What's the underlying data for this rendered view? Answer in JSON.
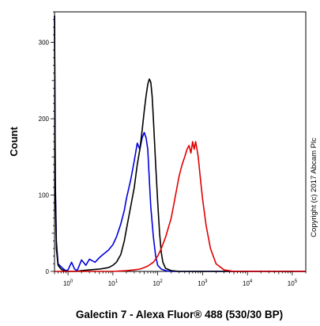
{
  "chart_data": {
    "type": "line",
    "title": "",
    "xlabel": "Galectin 7 - Alexa Fluor® 488 (530/30 BP)",
    "ylabel": "Count",
    "x_scale": "log",
    "xlim": [
      0.5,
      200000
    ],
    "ylim": [
      0,
      340
    ],
    "x_ticks": [
      {
        "value": 1,
        "base": "10",
        "exp": "0"
      },
      {
        "value": 10,
        "base": "10",
        "exp": "1"
      },
      {
        "value": 100,
        "base": "10",
        "exp": "2"
      },
      {
        "value": 1000,
        "base": "10",
        "exp": "3"
      },
      {
        "value": 10000,
        "base": "10",
        "exp": "4"
      },
      {
        "value": 100000,
        "base": "10",
        "exp": "5"
      }
    ],
    "y_ticks": [
      0,
      100,
      200,
      300
    ],
    "grid": false,
    "legend": "none",
    "annotation": "Copyright (c) 2017 Abcam Plc",
    "series": [
      {
        "color": "#0000dd",
        "x": [
          0.5,
          0.52,
          0.55,
          0.6,
          0.7,
          0.8,
          0.9,
          1.0,
          1.2,
          1.4,
          1.6,
          2.0,
          2.5,
          3,
          4,
          5,
          6,
          8,
          10,
          12,
          15,
          18,
          20,
          25,
          30,
          35,
          40,
          45,
          50,
          55,
          60,
          65,
          70,
          80,
          90,
          100,
          120,
          150,
          200,
          300,
          500,
          1000,
          10000,
          200000
        ],
        "y": [
          335,
          120,
          40,
          10,
          6,
          3,
          1,
          2,
          12,
          3,
          1,
          15,
          8,
          16,
          12,
          18,
          22,
          28,
          35,
          45,
          62,
          80,
          95,
          120,
          145,
          168,
          160,
          175,
          182,
          175,
          160,
          120,
          85,
          45,
          20,
          8,
          3,
          1,
          0,
          0,
          0,
          0,
          0,
          0
        ]
      },
      {
        "color": "#000000",
        "x": [
          0.5,
          0.52,
          0.55,
          0.6,
          0.7,
          0.8,
          1.0,
          1.5,
          2,
          3,
          5,
          8,
          10,
          12,
          15,
          18,
          20,
          25,
          30,
          35,
          40,
          45,
          50,
          55,
          60,
          65,
          70,
          75,
          80,
          90,
          100,
          110,
          120,
          130,
          150,
          200,
          300,
          1000,
          10000,
          200000
        ],
        "y": [
          335,
          110,
          30,
          8,
          3,
          1,
          0,
          0,
          1,
          2,
          3,
          5,
          8,
          12,
          22,
          40,
          55,
          85,
          110,
          140,
          160,
          185,
          210,
          230,
          245,
          252,
          248,
          230,
          200,
          140,
          90,
          50,
          25,
          12,
          4,
          1,
          0,
          0,
          0,
          0
        ]
      },
      {
        "color": "#e00000",
        "x": [
          0.5,
          10,
          20,
          30,
          40,
          50,
          60,
          80,
          100,
          120,
          150,
          200,
          250,
          300,
          350,
          400,
          450,
          500,
          550,
          600,
          650,
          700,
          750,
          800,
          900,
          1000,
          1200,
          1500,
          2000,
          3000,
          5000,
          200000
        ],
        "y": [
          0,
          0,
          1,
          2,
          3,
          5,
          7,
          12,
          20,
          30,
          45,
          70,
          100,
          125,
          140,
          150,
          160,
          165,
          155,
          170,
          160,
          170,
          160,
          150,
          120,
          95,
          60,
          30,
          10,
          2,
          0,
          0
        ]
      }
    ]
  }
}
